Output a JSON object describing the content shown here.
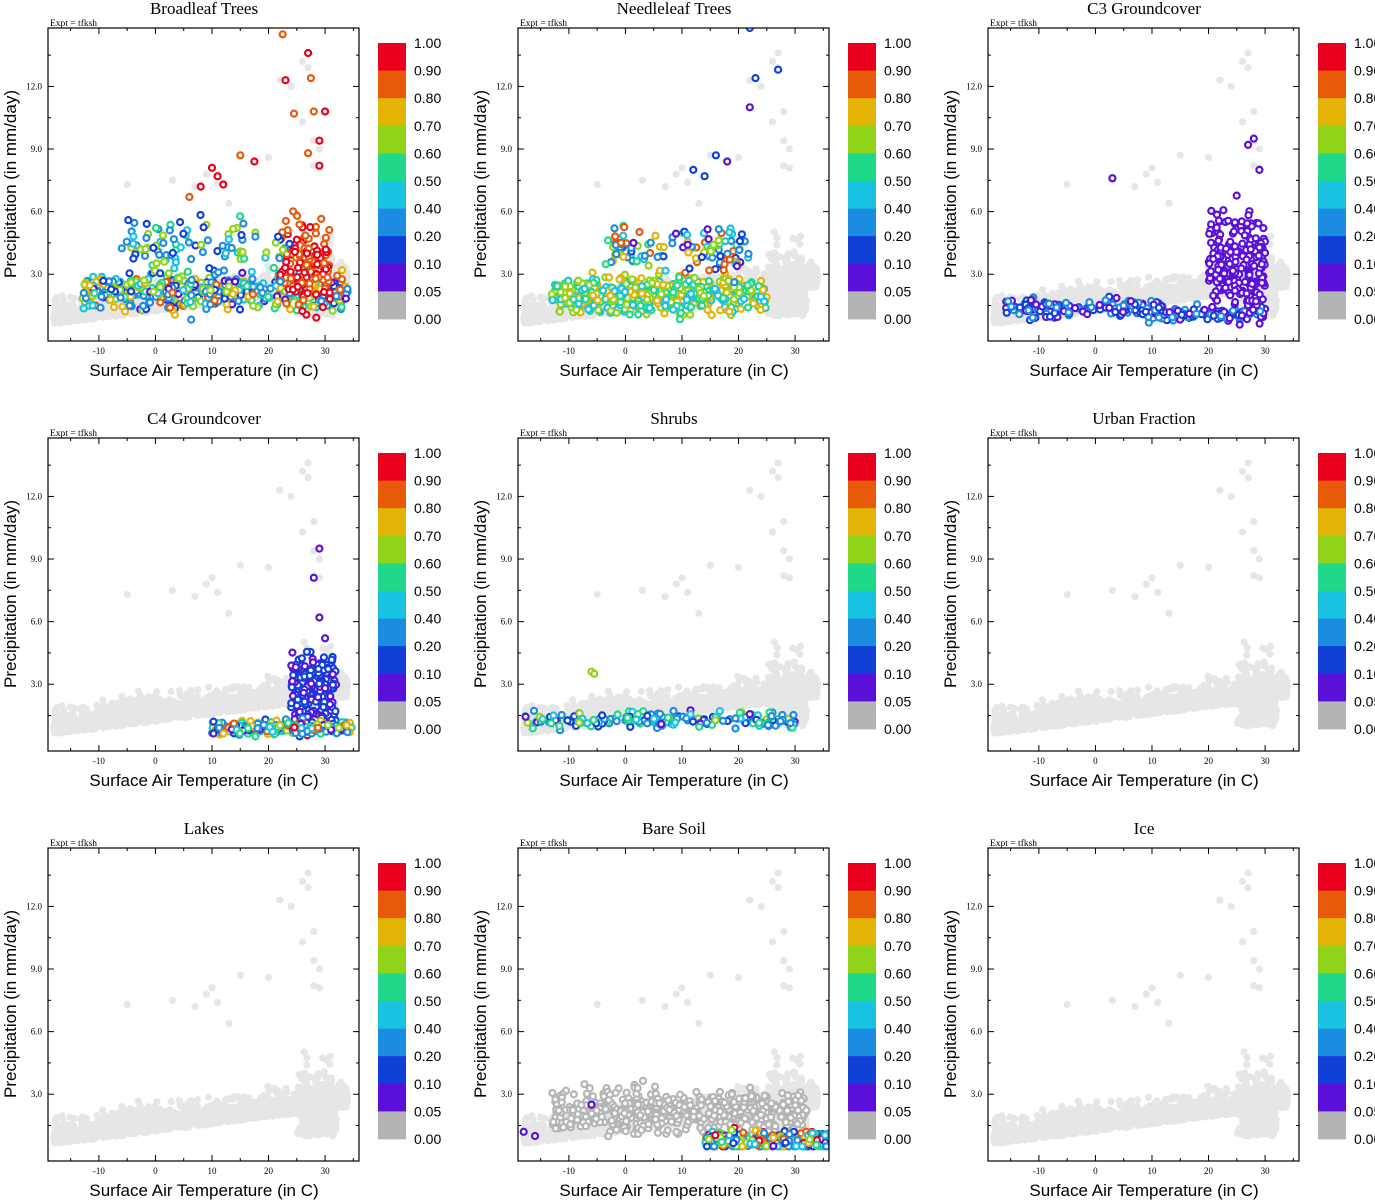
{
  "figure": {
    "xlabel": "Surface Air Temperature (in C)",
    "ylabel": "Precipitation (in mm/day)",
    "expt_label": "Expt = tfksh"
  },
  "colorbar": {
    "levels": [
      "1.00",
      "0.90",
      "0.80",
      "0.70",
      "0.60",
      "0.50",
      "0.40",
      "0.20",
      "0.10",
      "0.05",
      "0.00"
    ],
    "colors": [
      "#e8001c",
      "#e65a0a",
      "#e3b406",
      "#8fd418",
      "#1fd88a",
      "#18c2e0",
      "#1c8ce0",
      "#1040d8",
      "#5a10d8",
      "#b4b4b4"
    ],
    "bin_meaning": "colors[i] spans levels[i] (top) to levels[i+1] (bottom)"
  },
  "chart_data": [
    {
      "type": "scatter",
      "title": "Broadleaf Trees",
      "xlim": [
        -19,
        36
      ],
      "ylim": [
        -0.2,
        14.8
      ],
      "xticks": [
        -10,
        0,
        10,
        20,
        30
      ],
      "yticks": [
        3.0,
        6.0,
        9.0,
        12.0
      ],
      "background_color": "#e6e6e6",
      "colored_points": [
        {
          "region": "cluster",
          "x_range": [
            -13,
            34
          ],
          "y_center": 2.2,
          "y_spread": 0.9,
          "count": 520,
          "value_range": [
            0.05,
            0.85
          ]
        },
        {
          "region": "tropical_column",
          "x_range": [
            22,
            31
          ],
          "y_center": 3.5,
          "y_spread": 2.2,
          "count": 140,
          "value_range": [
            0.8,
            1.0
          ]
        },
        {
          "region": "isolated_high",
          "points": [
            [
              22.5,
              14.5
            ],
            [
              27,
              13.6
            ],
            [
              27.5,
              12.4
            ],
            [
              23,
              12.3
            ],
            [
              30,
              10.8
            ],
            [
              28,
              10.8
            ],
            [
              24.5,
              10.7
            ],
            [
              29,
              9.4
            ],
            [
              27,
              8.8
            ],
            [
              29,
              8.2
            ],
            [
              15,
              8.7
            ],
            [
              17.5,
              8.4
            ],
            [
              10,
              8.1
            ],
            [
              11,
              7.7
            ],
            [
              12,
              7.3
            ],
            [
              8,
              7.2
            ],
            [
              6,
              6.7
            ]
          ],
          "value_range": [
            0.8,
            1.0
          ]
        },
        {
          "region": "mid_spread",
          "x_range": [
            -6,
            24
          ],
          "y_center": 4.4,
          "y_spread": 1.2,
          "count": 90,
          "value_range": [
            0.1,
            0.7
          ]
        }
      ]
    },
    {
      "type": "scatter",
      "title": "Needleleaf Trees",
      "xlim": [
        -19,
        36
      ],
      "ylim": [
        -0.2,
        14.8
      ],
      "xticks": [
        -10,
        0,
        10,
        20,
        30
      ],
      "yticks": [
        3.0,
        6.0,
        9.0,
        12.0
      ],
      "background_color": "#e6e6e6",
      "colored_points": [
        {
          "region": "cluster",
          "x_range": [
            -13,
            25
          ],
          "y_center": 2.0,
          "y_spread": 0.9,
          "count": 560,
          "value_range": [
            0.4,
            0.78
          ]
        },
        {
          "region": "mid_spread",
          "x_range": [
            -4,
            22
          ],
          "y_center": 4.3,
          "y_spread": 1.4,
          "count": 120,
          "value_range": [
            0.05,
            0.9
          ]
        },
        {
          "region": "isolated_high",
          "points": [
            [
              22,
              14.8
            ],
            [
              27,
              12.8
            ],
            [
              23,
              12.4
            ],
            [
              22,
              11.0
            ],
            [
              16,
              8.7
            ],
            [
              18,
              8.4
            ],
            [
              12,
              8.0
            ],
            [
              14,
              7.7
            ]
          ],
          "value_range": [
            0.05,
            0.2
          ]
        }
      ]
    },
    {
      "type": "scatter",
      "title": "C3 Groundcover",
      "xlim": [
        -19,
        36
      ],
      "ylim": [
        -0.2,
        14.8
      ],
      "xticks": [
        -10,
        0,
        10,
        20,
        30
      ],
      "yticks": [
        3.0,
        6.0,
        9.0,
        12.0
      ],
      "background_color": "#e6e6e6",
      "colored_points": [
        {
          "region": "cold_band",
          "x_range": [
            -16,
            12
          ],
          "y_center": 1.4,
          "y_spread": 0.45,
          "count": 160,
          "value_range": [
            0.05,
            0.35
          ]
        },
        {
          "region": "warm_band",
          "x_range": [
            8,
            30
          ],
          "y_center": 1.1,
          "y_spread": 0.35,
          "count": 120,
          "value_range": [
            0.05,
            0.3
          ]
        },
        {
          "region": "tropical_column",
          "x_range": [
            20,
            30
          ],
          "y_center": 3.5,
          "y_spread": 2.4,
          "count": 220,
          "value_range": [
            0.05,
            0.1
          ]
        },
        {
          "region": "isolated_high",
          "points": [
            [
              3,
              7.6
            ],
            [
              28,
              9.5
            ],
            [
              27,
              9.2
            ],
            [
              29,
              8.0
            ]
          ],
          "value_range": [
            0.05,
            0.1
          ]
        }
      ]
    },
    {
      "type": "scatter",
      "title": "C4 Groundcover",
      "xlim": [
        -19,
        36
      ],
      "ylim": [
        -0.2,
        14.8
      ],
      "xticks": [
        -10,
        0,
        10,
        20,
        30
      ],
      "yticks": [
        3.0,
        6.0,
        9.0,
        12.0
      ],
      "background_color": "#e6e6e6",
      "colored_points": [
        {
          "region": "tropical_column",
          "x_range": [
            24,
            32
          ],
          "y_center": 2.8,
          "y_spread": 1.8,
          "count": 220,
          "value_range": [
            0.05,
            0.2
          ]
        },
        {
          "region": "low_band",
          "x_range": [
            10,
            35
          ],
          "y_center": 0.9,
          "y_spread": 0.35,
          "count": 220,
          "value_range": [
            0.05,
            0.95
          ]
        },
        {
          "region": "isolated_high",
          "points": [
            [
              29,
              9.5
            ],
            [
              28,
              8.1
            ],
            [
              29,
              6.2
            ],
            [
              30,
              5.2
            ]
          ],
          "value_range": [
            0.05,
            0.1
          ]
        }
      ]
    },
    {
      "type": "scatter",
      "title": "Shrubs",
      "xlim": [
        -19,
        36
      ],
      "ylim": [
        -0.2,
        14.8
      ],
      "xticks": [
        -10,
        0,
        10,
        20,
        30
      ],
      "yticks": [
        3.0,
        6.0,
        9.0,
        12.0
      ],
      "background_color": "#e6e6e6",
      "colored_points": [
        {
          "region": "low_band",
          "x_range": [
            -18,
            30
          ],
          "y_center": 1.3,
          "y_spread": 0.4,
          "count": 200,
          "value_range": [
            0.05,
            0.65
          ]
        },
        {
          "region": "isolated",
          "points": [
            [
              -6,
              3.6
            ],
            [
              -5.5,
              3.5
            ]
          ],
          "value_range": [
            0.6,
            0.7
          ]
        }
      ]
    },
    {
      "type": "scatter",
      "title": "Urban Fraction",
      "xlim": [
        -19,
        36
      ],
      "ylim": [
        -0.2,
        14.8
      ],
      "xticks": [
        -10,
        0,
        10,
        20,
        30
      ],
      "yticks": [
        3.0,
        6.0,
        9.0,
        12.0
      ],
      "background_color": "#e6e6e6",
      "colored_points": []
    },
    {
      "type": "scatter",
      "title": "Lakes",
      "xlim": [
        -19,
        36
      ],
      "ylim": [
        -0.2,
        14.8
      ],
      "xticks": [
        -10,
        0,
        10,
        20,
        30
      ],
      "yticks": [
        3.0,
        6.0,
        9.0,
        12.0
      ],
      "background_color": "#e6e6e6",
      "colored_points": []
    },
    {
      "type": "scatter",
      "title": "Bare Soil",
      "xlim": [
        -19,
        36
      ],
      "ylim": [
        -0.2,
        14.8
      ],
      "xticks": [
        -10,
        0,
        10,
        20,
        30
      ],
      "yticks": [
        3.0,
        6.0,
        9.0,
        12.0
      ],
      "background_color": "#e6e6e6",
      "colored_points": [
        {
          "region": "gray_zero_cluster",
          "x_range": [
            -13,
            32
          ],
          "y_center": 2.2,
          "y_spread": 1.0,
          "count": 520,
          "value_range": [
            0.0,
            0.0
          ]
        },
        {
          "region": "hot_band",
          "x_range": [
            14,
            36
          ],
          "y_center": 0.8,
          "y_spread": 0.5,
          "count": 260,
          "value_range": [
            0.05,
            1.0
          ]
        },
        {
          "region": "isolated",
          "points": [
            [
              -6,
              2.5
            ],
            [
              -18,
              1.2
            ],
            [
              -16,
              1.0
            ]
          ],
          "value_range": [
            0.05,
            0.1
          ]
        }
      ]
    },
    {
      "type": "scatter",
      "title": "Ice",
      "xlim": [
        -19,
        36
      ],
      "ylim": [
        -0.2,
        14.8
      ],
      "xticks": [
        -10,
        0,
        10,
        20,
        30
      ],
      "yticks": [
        3.0,
        6.0,
        9.0,
        12.0
      ],
      "background_color": "#e6e6e6",
      "colored_points": []
    }
  ]
}
